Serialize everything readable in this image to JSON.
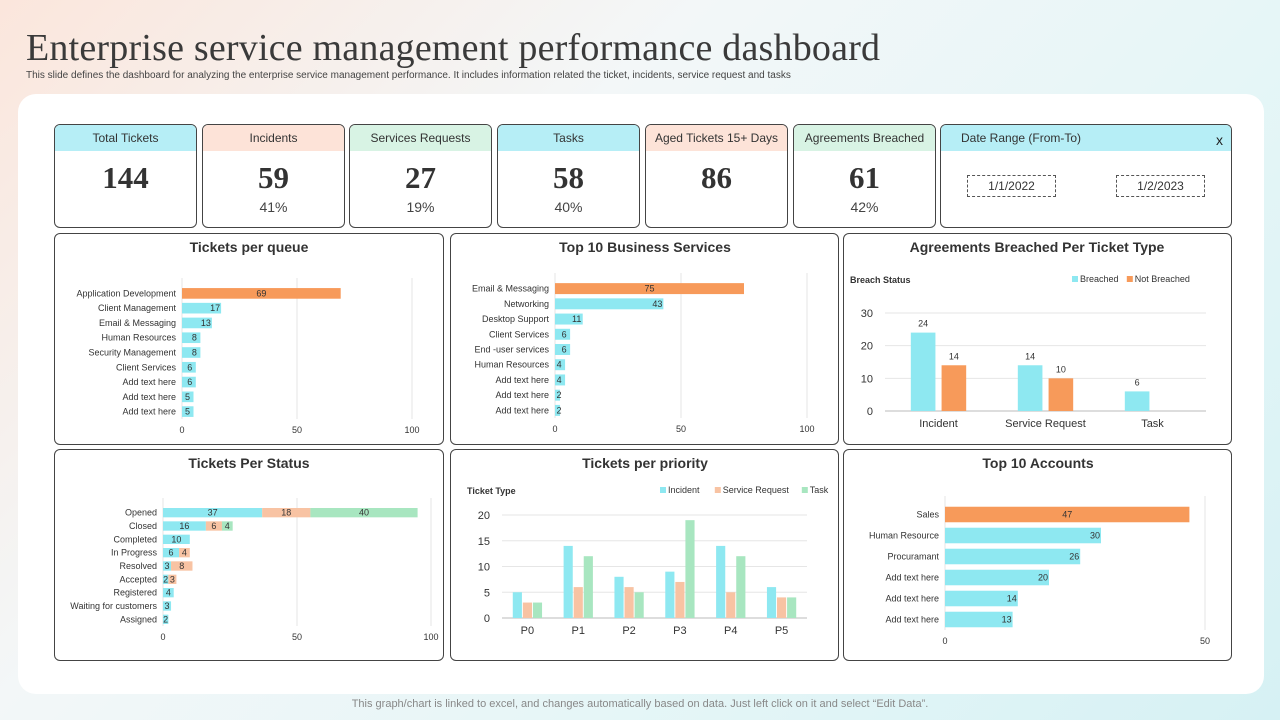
{
  "header": {
    "title": "Enterprise service management performance dashboard",
    "subtitle": "This slide defines the dashboard for analyzing the enterprise service management performance. It includes information related the ticket, incidents, service request and tasks"
  },
  "footer": "This graph/chart is linked to excel, and changes automatically based on data. Just left click on it and select “Edit Data”.",
  "colors": {
    "cyan": "#8ee8f1",
    "orange": "#f79a5a",
    "peach": "#f8c3a3",
    "green": "#a8e6c0",
    "grid": "#e6e6e6"
  },
  "kpis": [
    {
      "label": "Total Tickets",
      "value": "144",
      "pct": "",
      "head": "cyan"
    },
    {
      "label": "Incidents",
      "value": "59",
      "pct": "41%",
      "head": "peach"
    },
    {
      "label": "Services Requests",
      "value": "27",
      "pct": "19%",
      "head": "green"
    },
    {
      "label": "Tasks",
      "value": "58",
      "pct": "40%",
      "head": "cyan"
    },
    {
      "label": "Aged Tickets 15+ Days",
      "value": "86",
      "pct": "",
      "head": "peach"
    },
    {
      "label": "Agreements Breached",
      "value": "61",
      "pct": "42%",
      "head": "green"
    }
  ],
  "date_range": {
    "label": "Date Range (From-To)",
    "close": "x",
    "from": "1/1/2022",
    "to": "1/2/2023"
  },
  "chart_data": [
    {
      "id": "queue",
      "type": "bar",
      "orientation": "horizontal",
      "title": "Tickets per queue",
      "categories": [
        "Application Development",
        "Client Management",
        "Email & Messaging",
        "Human Resources",
        "Security Management",
        "Client Services",
        "Add text here",
        "Add text here",
        "Add text here"
      ],
      "values": [
        69,
        17,
        13,
        8,
        8,
        6,
        6,
        5,
        5
      ],
      "highlight_first": true,
      "xlim": [
        0,
        100
      ],
      "xticks": [
        "0",
        "50",
        "100"
      ]
    },
    {
      "id": "services",
      "type": "bar",
      "orientation": "horizontal",
      "title": "Top 10 Business Services",
      "categories": [
        "Email & Messaging",
        "Networking",
        "Desktop Support",
        "Client Services",
        "End -user services",
        "Human Resources",
        "Add text here",
        "Add text here",
        "Add text here"
      ],
      "values": [
        75,
        43,
        11,
        6,
        6,
        4,
        4,
        2,
        2
      ],
      "highlight_first": true,
      "xlim": [
        0,
        100
      ],
      "xticks": [
        "0",
        "50",
        "100"
      ]
    },
    {
      "id": "breached",
      "type": "bar",
      "title": "Agreements Breached Per Ticket Type",
      "subtitle": "Breach Status",
      "categories": [
        "Incident",
        "Service Request",
        "Task"
      ],
      "series": [
        {
          "name": "Breached",
          "values": [
            24,
            14,
            6
          ]
        },
        {
          "name": "Not Breached",
          "values": [
            14,
            10,
            null
          ]
        }
      ],
      "ylim": [
        0,
        30
      ],
      "yticks": [
        "0",
        "10",
        "20",
        "30"
      ],
      "legend": "top-right"
    },
    {
      "id": "status",
      "type": "bar",
      "orientation": "horizontal",
      "stacked": true,
      "title": "Tickets Per Status",
      "categories": [
        "Opened",
        "Closed",
        "Completed",
        "In Progress",
        "Resolved",
        "Accepted",
        "Registered",
        "Waiting for customers",
        "Assigned"
      ],
      "series": [
        {
          "name": "Incident",
          "values": [
            37,
            16,
            10,
            6,
            3,
            2,
            4,
            3,
            2
          ]
        },
        {
          "name": "Service Request",
          "values": [
            18,
            6,
            null,
            4,
            8,
            3,
            null,
            null,
            null
          ]
        },
        {
          "name": "Task",
          "values": [
            40,
            4,
            null,
            null,
            null,
            null,
            null,
            null,
            null
          ]
        }
      ],
      "xlim": [
        0,
        100
      ],
      "xticks": [
        "0",
        "50",
        "100"
      ]
    },
    {
      "id": "priority",
      "type": "bar",
      "title": "Tickets per priority",
      "subtitle": "Ticket Type",
      "categories": [
        "P0",
        "P1",
        "P2",
        "P3",
        "P4",
        "P5"
      ],
      "series": [
        {
          "name": "Incident",
          "values": [
            5,
            14,
            8,
            9,
            14,
            6
          ]
        },
        {
          "name": "Service Request",
          "values": [
            3,
            6,
            6,
            7,
            5,
            4
          ]
        },
        {
          "name": "Task",
          "values": [
            3,
            12,
            5,
            19,
            12,
            4
          ]
        }
      ],
      "ylim": [
        0,
        20
      ],
      "yticks": [
        "0",
        "5",
        "10",
        "15",
        "20"
      ],
      "legend": "top-right"
    },
    {
      "id": "accounts",
      "type": "bar",
      "orientation": "horizontal",
      "title": "Top 10 Accounts",
      "categories": [
        "Sales",
        "Human Resource",
        "Procuramant",
        "Add text here",
        "Add text here",
        "Add text here"
      ],
      "values": [
        47,
        30,
        26,
        20,
        14,
        13
      ],
      "highlight_first": true,
      "xlim": [
        0,
        50
      ],
      "xticks": [
        "0",
        "50"
      ]
    }
  ]
}
